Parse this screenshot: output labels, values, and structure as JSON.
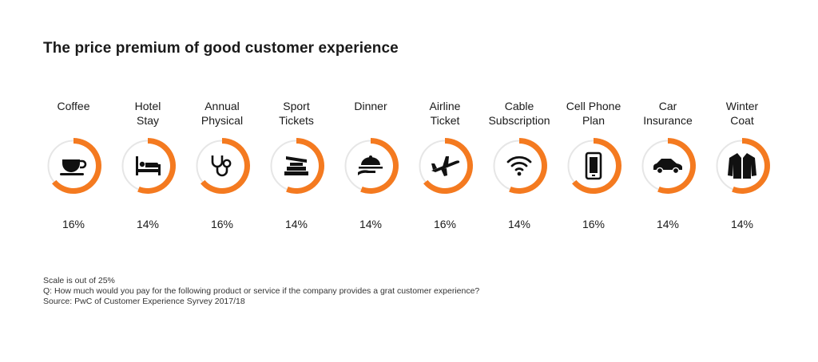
{
  "title": "The price premium of good customer experience",
  "chart_data": {
    "type": "donut-row",
    "scale_max": 25,
    "colors": {
      "arc": "#f47a20",
      "track": "#e6e6e6"
    },
    "items": [
      {
        "label": "Coffee",
        "value": 16,
        "display": "16%",
        "icon": "coffee-cup-icon"
      },
      {
        "label": "Hotel\nStay",
        "value": 14,
        "display": "14%",
        "icon": "hotel-bed-icon"
      },
      {
        "label": "Annual\nPhysical",
        "value": 16,
        "display": "16%",
        "icon": "stethoscope-icon"
      },
      {
        "label": "Sport\nTickets",
        "value": 14,
        "display": "14%",
        "icon": "stadium-icon"
      },
      {
        "label": "Dinner",
        "value": 14,
        "display": "14%",
        "icon": "serving-cloche-icon"
      },
      {
        "label": "Airline\nTicket",
        "value": 16,
        "display": "16%",
        "icon": "airplane-icon"
      },
      {
        "label": "Cable\nSubscription",
        "value": 14,
        "display": "14%",
        "icon": "wifi-signal-icon"
      },
      {
        "label": "Cell Phone\nPlan",
        "value": 16,
        "display": "16%",
        "icon": "cell-phone-icon"
      },
      {
        "label": "Car\nInsurance",
        "value": 14,
        "display": "14%",
        "icon": "car-icon"
      },
      {
        "label": "Winter\nCoat",
        "value": 14,
        "display": "14%",
        "icon": "winter-coat-icon"
      }
    ]
  },
  "notes": {
    "scale": "Scale is out of 25%",
    "question": "Q: How much would you pay for the following product or service if the company provides a grat customer experience?",
    "source": "Source: PwC of Customer Experience Syrvey 2017/18"
  }
}
